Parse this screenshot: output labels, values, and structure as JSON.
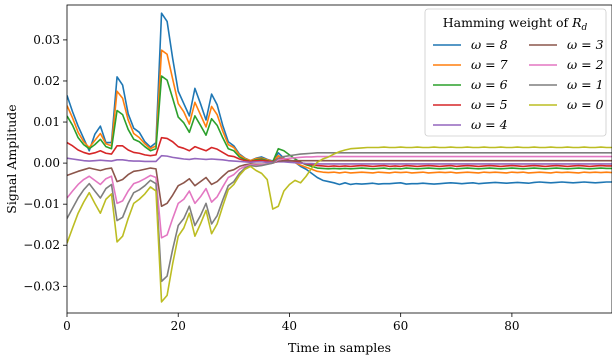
{
  "chart_data": {
    "type": "line",
    "title": "",
    "xlabel": "Time in samples",
    "ylabel": "Signal Amplitude",
    "xlim": [
      0,
      98
    ],
    "ylim": [
      -0.0365,
      0.0385
    ],
    "xticks": [
      0,
      20,
      40,
      60,
      80
    ],
    "yticks": [
      -0.03,
      -0.02,
      -0.01,
      0.0,
      0.01,
      0.02,
      0.03
    ],
    "xtick_labels": [
      "0",
      "20",
      "40",
      "60",
      "80"
    ],
    "ytick_labels": [
      "−0.03",
      "−0.02",
      "−0.01",
      "0.00",
      "0.01",
      "0.02",
      "0.03"
    ],
    "grid": false,
    "legend": {
      "title_main": "Hamming weight of",
      "title_var": "R",
      "title_sub": "d",
      "placement": "top-right",
      "columns": 2
    },
    "x_start": 0,
    "series": [
      {
        "name": "ω = 8",
        "color": "#1f77b4",
        "values": [
          0.0165,
          0.0125,
          0.009,
          0.006,
          0.003,
          0.007,
          0.009,
          0.005,
          0.005,
          0.021,
          0.019,
          0.012,
          0.0085,
          0.0075,
          0.0052,
          0.0039,
          0.005,
          0.0365,
          0.0345,
          0.0255,
          0.0175,
          0.0145,
          0.0115,
          0.0182,
          0.0145,
          0.0105,
          0.0168,
          0.0142,
          0.0092,
          0.0052,
          0.0042,
          0.0022,
          0.0012,
          0.0006,
          0.0012,
          0.0015,
          0.0009,
          0.0005,
          0.0025,
          0.0012,
          0.0006,
          0.0002,
          -0.0008,
          -0.0015,
          -0.0025,
          -0.0035,
          -0.0042,
          -0.0045,
          -0.0048,
          -0.0052,
          -0.0048,
          -0.0052,
          -0.005,
          -0.0051,
          -0.005,
          -0.0049,
          -0.0051,
          -0.005,
          -0.005,
          -0.0049,
          -0.0048,
          -0.0051,
          -0.005,
          -0.005,
          -0.0049,
          -0.005,
          -0.0051,
          -0.005,
          -0.0049,
          -0.0048,
          -0.0049,
          -0.005,
          -0.0049,
          -0.0048,
          -0.005,
          -0.0049,
          -0.0048,
          -0.0047,
          -0.0048,
          -0.0049,
          -0.0048,
          -0.0047,
          -0.0048,
          -0.0049,
          -0.0047,
          -0.0046,
          -0.0047,
          -0.0048,
          -0.0047,
          -0.0046,
          -0.0047,
          -0.0048,
          -0.0047,
          -0.0046,
          -0.0047,
          -0.0048,
          -0.0047,
          -0.0046,
          -0.0046
        ]
      },
      {
        "name": "ω = 7",
        "color": "#ff7f0e",
        "values": [
          0.014,
          0.011,
          0.0075,
          0.0052,
          0.0038,
          0.0055,
          0.0072,
          0.0047,
          0.0042,
          0.0175,
          0.0158,
          0.0105,
          0.0072,
          0.0062,
          0.0047,
          0.0035,
          0.0042,
          0.0275,
          0.0265,
          0.0205,
          0.0145,
          0.0125,
          0.0095,
          0.0148,
          0.0118,
          0.0088,
          0.0138,
          0.0118,
          0.0078,
          0.0045,
          0.0038,
          0.002,
          0.0011,
          0.0006,
          0.0011,
          0.0012,
          0.0008,
          0.0004,
          0.0018,
          0.001,
          0.0005,
          0.0001,
          -0.0005,
          -0.001,
          -0.0015,
          -0.002,
          -0.0022,
          -0.0023,
          -0.0022,
          -0.0024,
          -0.0022,
          -0.0024,
          -0.0023,
          -0.0022,
          -0.0023,
          -0.0024,
          -0.0022,
          -0.0023,
          -0.0024,
          -0.0022,
          -0.0023,
          -0.0022,
          -0.0024,
          -0.0023,
          -0.0022,
          -0.0024,
          -0.0023,
          -0.0022,
          -0.0023,
          -0.0022,
          -0.0024,
          -0.0023,
          -0.0022,
          -0.0023,
          -0.0024,
          -0.0022,
          -0.0023,
          -0.0022,
          -0.0023,
          -0.0024,
          -0.0022,
          -0.0023,
          -0.0022,
          -0.0024,
          -0.0023,
          -0.0022,
          -0.0023,
          -0.0024,
          -0.0022,
          -0.0023,
          -0.0022,
          -0.0023,
          -0.0024,
          -0.0022,
          -0.0023,
          -0.0022,
          -0.0023,
          -0.0022,
          -0.0023
        ]
      },
      {
        "name": "ω = 6",
        "color": "#2ca02c",
        "values": [
          0.0115,
          0.0092,
          0.0062,
          0.0045,
          0.0035,
          0.0045,
          0.0058,
          0.004,
          0.0035,
          0.0128,
          0.0118,
          0.0082,
          0.0058,
          0.0052,
          0.004,
          0.003,
          0.0035,
          0.0212,
          0.0202,
          0.0158,
          0.0112,
          0.0098,
          0.0075,
          0.0115,
          0.0092,
          0.0068,
          0.0108,
          0.0092,
          0.0062,
          0.0035,
          0.003,
          0.0015,
          0.0008,
          0.0004,
          0.0008,
          0.001,
          0.0006,
          0.0003,
          0.0035,
          0.003,
          0.002,
          0.001,
          0.0002,
          -0.0004,
          -0.0008,
          -0.0012,
          -0.0013,
          -0.0014,
          -0.0013,
          -0.0014,
          -0.0013,
          -0.0014,
          -0.0013,
          -0.0012,
          -0.0013,
          -0.0014,
          -0.0013,
          -0.0012,
          -0.0014,
          -0.0013,
          -0.0014,
          -0.0012,
          -0.0013,
          -0.0014,
          -0.0013,
          -0.0012,
          -0.0013,
          -0.0014,
          -0.0013,
          -0.0012,
          -0.0014,
          -0.0013,
          -0.0012,
          -0.0013,
          -0.0014,
          -0.0013,
          -0.0012,
          -0.0013,
          -0.0014,
          -0.0013,
          -0.0012,
          -0.0013,
          -0.0014,
          -0.0013,
          -0.0012,
          -0.0013,
          -0.0014,
          -0.0013,
          -0.0012,
          -0.0013,
          -0.0014,
          -0.0013,
          -0.0012,
          -0.0013,
          -0.0014,
          -0.0013,
          -0.0012,
          -0.0013,
          -0.0013
        ]
      },
      {
        "name": "ω = 5",
        "color": "#d62728",
        "values": [
          0.005,
          0.0042,
          0.0032,
          0.0026,
          0.0022,
          0.0025,
          0.003,
          0.0024,
          0.0022,
          0.0042,
          0.0042,
          0.0032,
          0.0026,
          0.0024,
          0.002,
          0.0018,
          0.002,
          0.0062,
          0.006,
          0.0052,
          0.004,
          0.0036,
          0.003,
          0.004,
          0.0035,
          0.003,
          0.0038,
          0.0034,
          0.0026,
          0.0018,
          0.0016,
          0.001,
          0.0006,
          0.0004,
          0.0006,
          0.0007,
          0.0005,
          0.0003,
          0.0012,
          0.001,
          0.0007,
          0.0004,
          0.0001,
          -0.0002,
          -0.0004,
          -0.0006,
          -0.0007,
          -0.0008,
          -0.0007,
          -0.0008,
          -0.0007,
          -0.0008,
          -0.0007,
          -0.0006,
          -0.0007,
          -0.0008,
          -0.0007,
          -0.0006,
          -0.0008,
          -0.0007,
          -0.0008,
          -0.0006,
          -0.0007,
          -0.0008,
          -0.0007,
          -0.0006,
          -0.0007,
          -0.0008,
          -0.0007,
          -0.0006,
          -0.0008,
          -0.0007,
          -0.0006,
          -0.0007,
          -0.0008,
          -0.0007,
          -0.0006,
          -0.0007,
          -0.0008,
          -0.0007,
          -0.0006,
          -0.0007,
          -0.0008,
          -0.0007,
          -0.0006,
          -0.0007,
          -0.0008,
          -0.0007,
          -0.0006,
          -0.0007,
          -0.0008,
          -0.0007,
          -0.0006,
          -0.0007,
          -0.0008,
          -0.0007,
          -0.0006,
          -0.0007,
          -0.0007
        ]
      },
      {
        "name": "ω = 4",
        "color": "#9467bd",
        "values": [
          0.0012,
          0.001,
          0.0008,
          0.0006,
          0.0005,
          0.0006,
          0.0007,
          0.0006,
          0.0005,
          0.0008,
          0.0008,
          0.0006,
          0.0005,
          0.0005,
          0.0004,
          0.0004,
          0.0004,
          0.0018,
          0.0017,
          0.0014,
          0.0012,
          0.001,
          0.0009,
          0.0011,
          0.001,
          0.0009,
          0.001,
          0.0009,
          0.0008,
          0.0006,
          0.0005,
          0.0004,
          0.0003,
          0.0002,
          0.0003,
          0.0003,
          0.0002,
          0.0002,
          0.0003,
          0.0003,
          0.0002,
          0.0001,
          0.0,
          -0.0001,
          -0.0001,
          -0.0002,
          -0.0002,
          -0.0002,
          -0.0002,
          -0.0002,
          -0.0002,
          -0.0002,
          -0.0002,
          -0.0002,
          -0.0002,
          -0.0002,
          -0.0002,
          -0.0002,
          -0.0002,
          -0.0002,
          -0.0002,
          -0.0002,
          -0.0002,
          -0.0002,
          -0.0002,
          -0.0002,
          -0.0002,
          -0.0002,
          -0.0002,
          -0.0002,
          -0.0002,
          -0.0002,
          -0.0002,
          -0.0002,
          -0.0002,
          -0.0002,
          -0.0002,
          -0.0002,
          -0.0002,
          -0.0002,
          -0.0002,
          -0.0002,
          -0.0002,
          -0.0002,
          -0.0002,
          -0.0002,
          -0.0002,
          -0.0002,
          -0.0002,
          -0.0002,
          -0.0002,
          -0.0002,
          -0.0002,
          -0.0002,
          -0.0002,
          -0.0002,
          -0.0002,
          -0.0002,
          -0.0002
        ]
      },
      {
        "name": "ω = 3",
        "color": "#8c564b",
        "values": [
          -0.003,
          -0.0025,
          -0.002,
          -0.0016,
          -0.0012,
          -0.0015,
          -0.0018,
          -0.0014,
          -0.0012,
          -0.0045,
          -0.004,
          -0.0028,
          -0.002,
          -0.0018,
          -0.0015,
          -0.0012,
          -0.0014,
          -0.0105,
          -0.0098,
          -0.0078,
          -0.0055,
          -0.0048,
          -0.0038,
          -0.0055,
          -0.0045,
          -0.0035,
          -0.0052,
          -0.0045,
          -0.0032,
          -0.002,
          -0.0016,
          -0.0008,
          -0.0004,
          -0.0002,
          -0.0003,
          -0.0003,
          -0.0002,
          0.0,
          0.0005,
          0.0006,
          0.0006,
          0.0006,
          0.0006,
          0.0006,
          0.0006,
          0.0006,
          0.0006,
          0.0006,
          0.0006,
          0.0006,
          0.0006,
          0.0006,
          0.0006,
          0.0006,
          0.0006,
          0.0006,
          0.0006,
          0.0006,
          0.0006,
          0.0006,
          0.0006,
          0.0006,
          0.0006,
          0.0006,
          0.0006,
          0.0006,
          0.0006,
          0.0006,
          0.0006,
          0.0006,
          0.0006,
          0.0006,
          0.0006,
          0.0006,
          0.0006,
          0.0006,
          0.0006,
          0.0006,
          0.0006,
          0.0006,
          0.0006,
          0.0006,
          0.0006,
          0.0006,
          0.0006,
          0.0006,
          0.0006,
          0.0006,
          0.0006,
          0.0006,
          0.0006,
          0.0006,
          0.0006,
          0.0006,
          0.0006,
          0.0006,
          0.0006,
          0.0006,
          0.0006
        ]
      },
      {
        "name": "ω = 2",
        "color": "#e377c2",
        "values": [
          -0.0085,
          -0.0068,
          -0.0052,
          -0.004,
          -0.0032,
          -0.0042,
          -0.0052,
          -0.0038,
          -0.0032,
          -0.0098,
          -0.0092,
          -0.0068,
          -0.005,
          -0.0045,
          -0.0038,
          -0.003,
          -0.0035,
          -0.0182,
          -0.0175,
          -0.0135,
          -0.0098,
          -0.0088,
          -0.0068,
          -0.0098,
          -0.0082,
          -0.0062,
          -0.0095,
          -0.0082,
          -0.0058,
          -0.0035,
          -0.0028,
          -0.0015,
          -0.0008,
          -0.0004,
          -0.0005,
          -0.0004,
          -0.0002,
          0.0,
          0.0008,
          0.001,
          0.0012,
          0.0013,
          0.0014,
          0.0015,
          0.0015,
          0.0016,
          0.0016,
          0.0016,
          0.0016,
          0.0016,
          0.0016,
          0.0016,
          0.0016,
          0.0016,
          0.0016,
          0.0016,
          0.0016,
          0.0016,
          0.0016,
          0.0016,
          0.0016,
          0.0016,
          0.0016,
          0.0016,
          0.0016,
          0.0016,
          0.0016,
          0.0016,
          0.0016,
          0.0016,
          0.0016,
          0.0016,
          0.0016,
          0.0016,
          0.0016,
          0.0016,
          0.0016,
          0.0016,
          0.0016,
          0.0016,
          0.0016,
          0.0016,
          0.0016,
          0.0016,
          0.0016,
          0.0016,
          0.0016,
          0.0016,
          0.0016,
          0.0016,
          0.0016,
          0.0016,
          0.0016,
          0.0016,
          0.0016,
          0.0016,
          0.0016,
          0.0016,
          0.0016
        ]
      },
      {
        "name": "ω = 1",
        "color": "#7f7f7f",
        "values": [
          -0.0135,
          -0.011,
          -0.0085,
          -0.0065,
          -0.005,
          -0.0068,
          -0.0085,
          -0.0062,
          -0.0052,
          -0.014,
          -0.0132,
          -0.0098,
          -0.0072,
          -0.0065,
          -0.0055,
          -0.0042,
          -0.005,
          -0.0288,
          -0.0275,
          -0.021,
          -0.0152,
          -0.0135,
          -0.0105,
          -0.0152,
          -0.0128,
          -0.0098,
          -0.0148,
          -0.0128,
          -0.009,
          -0.0055,
          -0.0045,
          -0.0025,
          -0.0012,
          -0.0006,
          -0.0008,
          -0.0006,
          -0.0003,
          0.0,
          0.0012,
          0.0016,
          0.0018,
          0.002,
          0.0022,
          0.0023,
          0.0024,
          0.0025,
          0.0025,
          0.0025,
          0.0025,
          0.0025,
          0.0025,
          0.0025,
          0.0025,
          0.0025,
          0.0025,
          0.0025,
          0.0025,
          0.0025,
          0.0025,
          0.0025,
          0.0025,
          0.0025,
          0.0025,
          0.0025,
          0.0025,
          0.0025,
          0.0025,
          0.0025,
          0.0025,
          0.0025,
          0.0025,
          0.0025,
          0.0025,
          0.0025,
          0.0025,
          0.0025,
          0.0025,
          0.0025,
          0.0025,
          0.0025,
          0.0025,
          0.0025,
          0.0025,
          0.0025,
          0.0025,
          0.0025,
          0.0025,
          0.0025,
          0.0025,
          0.0025,
          0.0025,
          0.0025,
          0.0025,
          0.0025,
          0.0025,
          0.0025,
          0.0025,
          0.0025,
          0.0025
        ]
      },
      {
        "name": "ω = 0",
        "color": "#bcbd22",
        "values": [
          -0.0195,
          -0.0158,
          -0.0122,
          -0.0095,
          -0.0072,
          -0.0098,
          -0.0122,
          -0.0088,
          -0.0075,
          -0.0192,
          -0.0178,
          -0.0135,
          -0.0098,
          -0.0088,
          -0.0075,
          -0.0058,
          -0.0068,
          -0.0338,
          -0.0322,
          -0.0245,
          -0.0178,
          -0.0158,
          -0.0122,
          -0.0178,
          -0.0148,
          -0.0115,
          -0.0172,
          -0.0148,
          -0.0105,
          -0.0065,
          -0.0052,
          -0.003,
          -0.0015,
          -0.0008,
          -0.0018,
          -0.0025,
          -0.004,
          -0.0112,
          -0.0105,
          -0.0068,
          -0.0052,
          -0.0042,
          -0.0048,
          -0.0032,
          -0.0012,
          0.0002,
          0.001,
          0.0015,
          0.0022,
          0.0028,
          0.0032,
          0.0035,
          0.0036,
          0.0037,
          0.0038,
          0.0038,
          0.0038,
          0.0039,
          0.0038,
          0.0038,
          0.0039,
          0.0038,
          0.0038,
          0.0039,
          0.0038,
          0.0038,
          0.0039,
          0.0038,
          0.0038,
          0.0039,
          0.0038,
          0.0038,
          0.0039,
          0.0038,
          0.0038,
          0.0039,
          0.0038,
          0.0038,
          0.0039,
          0.0038,
          0.0038,
          0.0039,
          0.0038,
          0.0038,
          0.0039,
          0.0038,
          0.0038,
          0.0039,
          0.0038,
          0.0038,
          0.0039,
          0.0038,
          0.0038,
          0.0039,
          0.0038,
          0.0038,
          0.0039,
          0.0038,
          0.0038
        ]
      }
    ]
  }
}
